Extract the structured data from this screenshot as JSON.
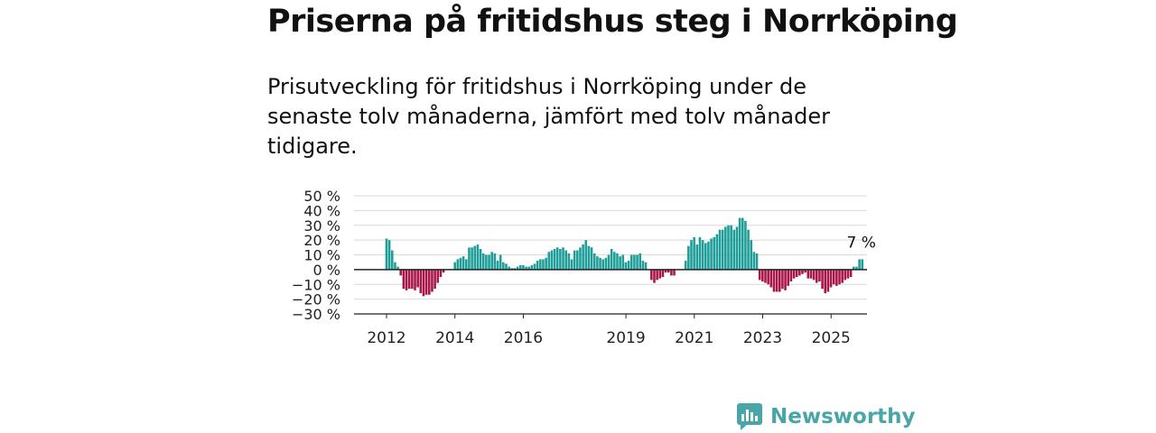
{
  "title": "Priserna på fritidshus steg i Norrköping",
  "subtitle": "Prisutveckling för fritidshus i Norrköping under de senaste tolv månaderna, jämfört med tolv månader tidigare.",
  "brand": {
    "name": "Newsworthy",
    "icon": "newsworthy-logo-icon",
    "color": "#49a6a6"
  },
  "chart_data": {
    "type": "bar",
    "title": "",
    "xlabel": "",
    "ylabel": "",
    "ylim": [
      -30,
      50
    ],
    "y_ticks": [
      50,
      40,
      30,
      20,
      10,
      0,
      -10,
      -20,
      -30
    ],
    "y_tick_labels": [
      "50 %",
      "40 %",
      "30 %",
      "20 %",
      "10 %",
      "0 %",
      "−10 %",
      "−20 %",
      "−30 %"
    ],
    "x_tick_labels": [
      "2012",
      "2014",
      "2016",
      "2019",
      "2021",
      "2023",
      "2025"
    ],
    "x_tick_positions": [
      2012.0,
      2014.0,
      2016.0,
      2019.0,
      2021.0,
      2023.0,
      2025.0
    ],
    "grid": true,
    "positive_color": "#1f9e99",
    "negative_color": "#a8174a",
    "annotation": {
      "text": "7 %",
      "value": 7
    },
    "series": [
      {
        "start": 2012.0,
        "step_years": 0.0833,
        "values": [
          21,
          20,
          13,
          5,
          2,
          -4,
          -13,
          -14,
          -13,
          -13,
          -14,
          -12,
          -16,
          -18,
          -17,
          -17,
          -15,
          -13,
          -9,
          -5,
          -2,
          0,
          0,
          0,
          5,
          7,
          8,
          9,
          7,
          15,
          15,
          16,
          17,
          14,
          11,
          10,
          10,
          12,
          11,
          6,
          10,
          5,
          4,
          2,
          1,
          1,
          2,
          3,
          3,
          2,
          2,
          3,
          4,
          6,
          7,
          7,
          8,
          12,
          13,
          14,
          15,
          14,
          15,
          13,
          11,
          7,
          13,
          13,
          15,
          17,
          20,
          16,
          15,
          11,
          9,
          8,
          7,
          8,
          10,
          14,
          12,
          11,
          9,
          10,
          5,
          6,
          10,
          10,
          10,
          11,
          6,
          5,
          0,
          -7,
          -9,
          -7,
          -6,
          -5,
          -2,
          -2,
          -4,
          -4,
          0,
          0,
          0,
          6,
          16,
          20,
          22,
          17,
          22,
          20,
          18,
          19,
          21,
          22,
          24,
          27,
          27,
          29,
          30,
          30,
          27,
          29,
          35,
          35,
          33,
          27,
          20,
          12,
          11,
          -7,
          -8,
          -9,
          -10,
          -12,
          -15,
          -15,
          -15,
          -13,
          -14,
          -11,
          -8,
          -6,
          -5,
          -4,
          -3,
          -2,
          -6,
          -6,
          -7,
          -9,
          -8,
          -13,
          -16,
          -15,
          -12,
          -10,
          -11,
          -10,
          -9,
          -7,
          -6,
          -5,
          2,
          2,
          7,
          7
        ]
      }
    ]
  }
}
